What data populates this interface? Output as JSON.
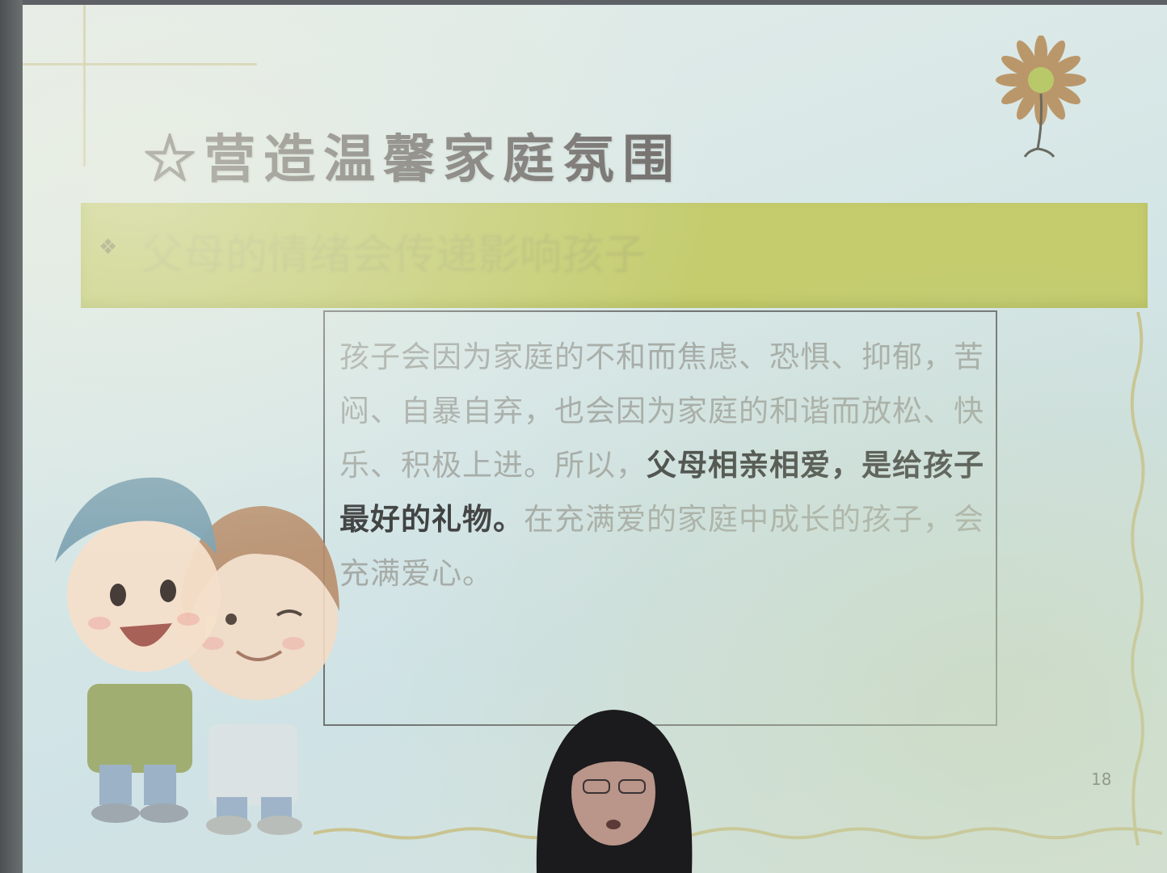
{
  "slide": {
    "title": "☆营造温馨家庭氛围",
    "subtitle_bullet": "❖",
    "subtitle": "父母的情绪会传递影响孩子",
    "paragraph_before": "孩子会因为家庭的不和而焦虑、恐惧、抑郁，苦闷、自暴自弃，也会因为家庭的和谐而放松、快乐、积极上进。所以，",
    "paragraph_emphasis": "父母相亲相爱，是给孩子最好的礼物。",
    "paragraph_after": "在充满爱的家庭中成长的孩子，会充满爱心。",
    "page_number": "18"
  },
  "colors": {
    "band": "#c4cc6e",
    "title": "#6e6a69",
    "emphasis": "#3f4141",
    "muted_text": "#a6aba7"
  },
  "icons": {
    "corner_decoration": "flower-icon",
    "illustration": "cartoon-kids-illustration",
    "person": "presenter-silhouette"
  }
}
